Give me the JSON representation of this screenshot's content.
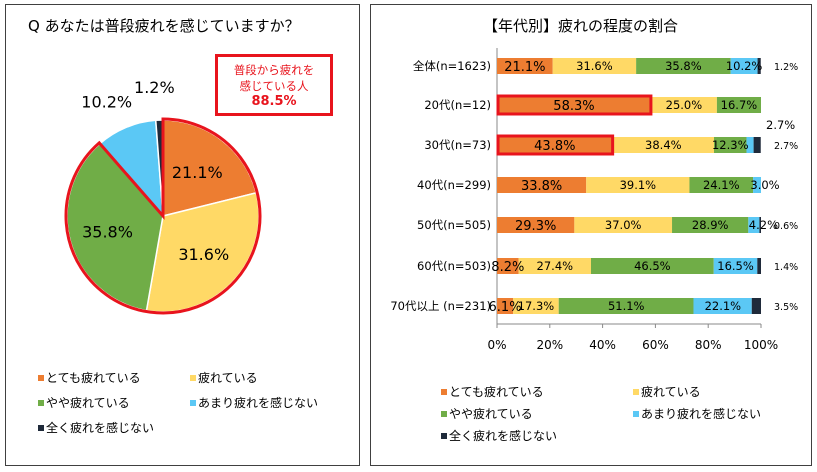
{
  "left": {
    "title": "Q あなたは普段疲れを感じていますか？",
    "callout_line1": "普段から疲れを",
    "callout_line2": "感じている人",
    "callout_value": "88.5%"
  },
  "right": {
    "title": "【年代別】疲れの程度の割合"
  },
  "colors": {
    "very_tired": "#ED7D31",
    "tired": "#FFD966",
    "somewhat": "#70AD47",
    "not_much": "#5BC8F5",
    "not_at_all": "#1F2A3A",
    "highlight": "#E8141D"
  },
  "legend": [
    {
      "label": "とても疲れている",
      "color": "#ED7D31"
    },
    {
      "label": "疲れている",
      "color": "#FFD966"
    },
    {
      "label": "やや疲れている",
      "color": "#70AD47"
    },
    {
      "label": "あまり疲れを感じない",
      "color": "#5BC8F5"
    },
    {
      "label": "全く疲れを感じない",
      "color": "#1F2A3A"
    }
  ],
  "chart_data": [
    {
      "type": "pie",
      "title": "Q あなたは普段疲れを感じていますか？",
      "categories": [
        "とても疲れている",
        "疲れている",
        "やや疲れている",
        "あまり疲れを感じない",
        "全く疲れを感じない"
      ],
      "values": [
        21.1,
        31.6,
        35.8,
        10.2,
        1.2
      ],
      "labels": [
        "21.1%",
        "31.6%",
        "35.8%",
        "10.2%",
        "1.2%"
      ]
    },
    {
      "type": "bar",
      "stacked": true,
      "orientation": "horizontal",
      "title": "【年代別】疲れの程度の割合",
      "categories": [
        "全体(n=1623)",
        "20代(n=12)",
        "30代(n=73)",
        "40代(n=299)",
        "50代(n=505)",
        "60代(n=503)",
        "70代以上 (n=231)"
      ],
      "series": [
        {
          "name": "とても疲れている",
          "values": [
            21.1,
            58.3,
            43.8,
            33.8,
            29.3,
            8.2,
            6.1
          ],
          "labels": [
            "21.1%",
            "58.3%",
            "43.8%",
            "33.8%",
            "29.3%",
            "8.2%",
            "6.1%"
          ]
        },
        {
          "name": "疲れている",
          "values": [
            31.6,
            25.0,
            38.4,
            39.1,
            37.0,
            27.4,
            17.3
          ],
          "labels": [
            "31.6%",
            "25.0%",
            "38.4%",
            "39.1%",
            "37.0%",
            "27.4%",
            "17.3%"
          ]
        },
        {
          "name": "やや疲れている",
          "values": [
            35.8,
            16.7,
            12.3,
            24.1,
            28.9,
            46.5,
            51.1
          ],
          "labels": [
            "35.8%",
            "16.7%",
            "12.3%",
            "24.1%",
            "28.9%",
            "46.5%",
            "51.1%"
          ]
        },
        {
          "name": "あまり疲れを感じない",
          "values": [
            10.2,
            0,
            2.7,
            3.0,
            4.2,
            16.5,
            22.1
          ],
          "labels": [
            "10.2%",
            "",
            "2.7%",
            "3.0%",
            "4.2%",
            "16.5%",
            "22.1%"
          ]
        },
        {
          "name": "全く疲れを感じない",
          "values": [
            1.2,
            0,
            2.7,
            0,
            0.6,
            1.4,
            3.5
          ],
          "labels": [
            "1.2%",
            "",
            "2.7%",
            "",
            "0.6%",
            "1.4%",
            "3.5%"
          ]
        }
      ],
      "xlim": [
        0,
        100
      ],
      "xticks": [
        "0%",
        "20%",
        "40%",
        "60%",
        "80%",
        "100%"
      ],
      "highlighted_bars": [
        "20代(n=12)",
        "30代(n=73)"
      ]
    }
  ]
}
